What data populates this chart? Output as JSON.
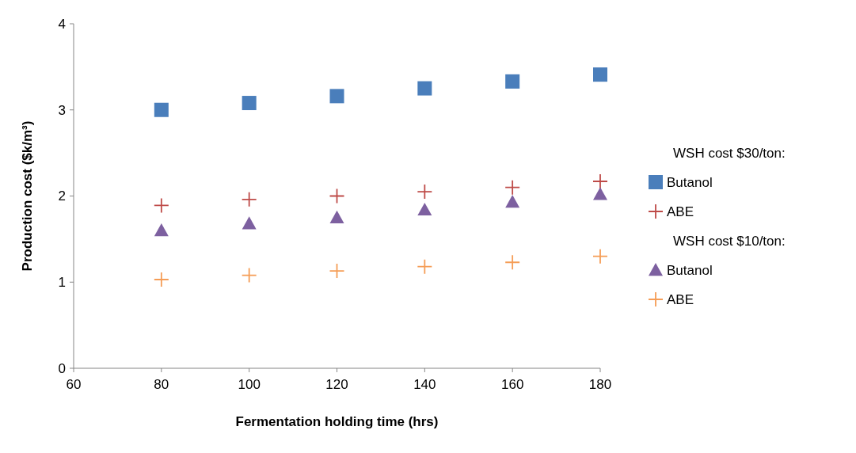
{
  "chart_data": {
    "type": "scatter",
    "xlabel": "Fermentation holding time (hrs)",
    "ylabel": "Production cost ($k/m³)",
    "x": [
      80,
      100,
      120,
      140,
      160,
      180
    ],
    "series": [
      {
        "name": "Butanol",
        "color": "#4a7ebb",
        "marker": "square",
        "values": [
          3.0,
          3.08,
          3.16,
          3.25,
          3.33,
          3.41
        ]
      },
      {
        "name": "ABE",
        "color": "#be4b48",
        "marker": "cross",
        "values": [
          1.89,
          1.96,
          2.0,
          2.05,
          2.1,
          2.17
        ]
      },
      {
        "name": "Butanol",
        "color": "#7d60a0",
        "marker": "triangle",
        "values": [
          1.6,
          1.68,
          1.75,
          1.84,
          1.93,
          2.02
        ]
      },
      {
        "name": "ABE",
        "color": "#f59d56",
        "marker": "cross",
        "values": [
          1.03,
          1.08,
          1.13,
          1.18,
          1.23,
          1.3
        ]
      }
    ],
    "annotations": [
      "WSH cost $30/ton:",
      "WSH cost $10/ton:"
    ],
    "xlim": [
      60,
      180
    ],
    "xticks": [
      60,
      80,
      100,
      120,
      140,
      160,
      180
    ],
    "ylim": [
      0,
      4
    ],
    "yticks": [
      0,
      1,
      2,
      3,
      4
    ],
    "grid": false,
    "legend": "right"
  }
}
